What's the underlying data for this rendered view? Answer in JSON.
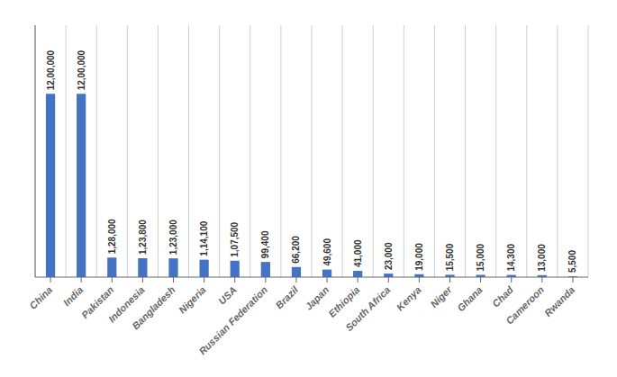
{
  "chart_data": {
    "type": "bar",
    "categories": [
      "China",
      "India",
      "Pakistan",
      "Indonesia",
      "Bangladesh",
      "Nigeria",
      "USA",
      "Russian Federation",
      "Brazil",
      "Japan",
      "Ethiopia",
      "South Africa",
      "Kenya",
      "Niger",
      "Ghana",
      "Chad",
      "Cameroon",
      "Rwanda"
    ],
    "values": [
      1200000,
      1200000,
      128000,
      123800,
      123000,
      114100,
      107500,
      99400,
      66200,
      49600,
      41000,
      23000,
      19000,
      15500,
      15000,
      14300,
      13000,
      5500
    ],
    "value_labels": [
      "12,00,000",
      "12,00,000",
      "1,28,000",
      "1,23,800",
      "1,23,000",
      "1,14,100",
      "1,07,500",
      "99,400",
      "66,200",
      "49,600",
      "41,000",
      "23,000",
      "19,000",
      "15,500",
      "15,000",
      "14,300",
      "13,000",
      "5,500"
    ],
    "color": "#4472c4",
    "ylim": [
      0,
      1650000
    ],
    "grid": true,
    "data_labels": true,
    "tick_labels": "x"
  }
}
